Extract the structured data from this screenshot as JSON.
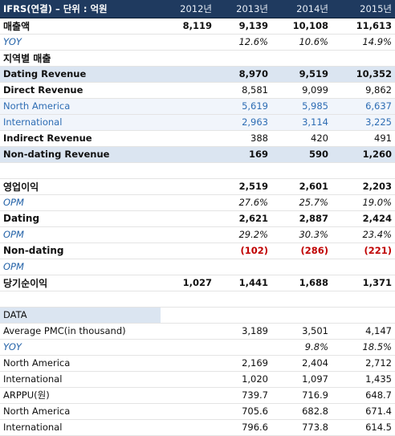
{
  "header": {
    "title": "IFRS(연결) – 단위 : 억원",
    "years": [
      "2012년",
      "2013년",
      "2014년",
      "2015년"
    ]
  },
  "rows": [
    {
      "label": "매출액",
      "values": [
        "8,119",
        "9,139",
        "10,108",
        "11,613"
      ],
      "style": "bold top"
    },
    {
      "label": "YOY",
      "values": [
        null,
        "12.6%",
        "10.6%",
        "14.9%"
      ],
      "style": "yoy line"
    },
    {
      "label": "지역별 매출",
      "values": [
        null,
        null,
        null,
        null
      ],
      "style": "bold"
    },
    {
      "label": "Dating Revenue",
      "values": [
        null,
        "8,970",
        "9,519",
        "10,352"
      ],
      "style": "band"
    },
    {
      "label": "Direct Revenue",
      "values": [
        null,
        "8,581",
        "9,099",
        "9,862"
      ],
      "style": "sub"
    },
    {
      "label": "North America",
      "values": [
        null,
        "5,619",
        "5,985",
        "6,637"
      ],
      "style": "region"
    },
    {
      "label": "International",
      "values": [
        null,
        "2,963",
        "3,114",
        "3,225"
      ],
      "style": "region"
    },
    {
      "label": "Indirect Revenue",
      "values": [
        null,
        "388",
        "420",
        "491"
      ],
      "style": "sub"
    },
    {
      "label": "Non-dating Revenue",
      "values": [
        null,
        "169",
        "590",
        "1,260"
      ],
      "style": "band line"
    },
    {
      "label": null,
      "values": [
        null,
        null,
        null,
        null
      ],
      "style": "gap"
    },
    {
      "label": "영업이익",
      "values": [
        null,
        "2,519",
        "2,601",
        "2,203"
      ],
      "style": "bold top"
    },
    {
      "label": "OPM",
      "values": [
        null,
        "27.6%",
        "25.7%",
        "19.0%"
      ],
      "style": "yoy"
    },
    {
      "label": "Dating",
      "values": [
        null,
        "2,621",
        "2,887",
        "2,424"
      ],
      "style": "bold"
    },
    {
      "label": "OPM",
      "values": [
        null,
        "29.2%",
        "30.3%",
        "23.4%"
      ],
      "style": "yoy"
    },
    {
      "label": "Non-dating",
      "values": [
        null,
        "(102)",
        "(286)",
        "(221)"
      ],
      "style": "bold neg"
    },
    {
      "label": "OPM",
      "values": [
        null,
        null,
        null,
        null
      ],
      "style": "yoy line"
    },
    {
      "label": "당기순이익",
      "values": [
        "1,027",
        "1,441",
        "1,688",
        "1,371"
      ],
      "style": "bold line"
    },
    {
      "label": null,
      "values": [
        null,
        null,
        null,
        null
      ],
      "style": "gap"
    },
    {
      "label": "DATA",
      "values": [
        null,
        null,
        null,
        null
      ],
      "style": "data"
    },
    {
      "label": "Average PMC(in thousand)",
      "values": [
        null,
        "3,189",
        "3,501",
        "4,147"
      ],
      "style": "plain"
    },
    {
      "label": "YOY",
      "values": [
        null,
        null,
        "9.8%",
        "18.5%"
      ],
      "style": "yoy line"
    },
    {
      "label": "North America",
      "values": [
        null,
        "2,169",
        "2,404",
        "2,712"
      ],
      "style": "dsub"
    },
    {
      "label": "International",
      "values": [
        null,
        "1,020",
        "1,097",
        "1,435"
      ],
      "style": "dsub line"
    },
    {
      "label": "ARPPU(원)",
      "values": [
        null,
        "739.7",
        "716.9",
        "648.7"
      ],
      "style": "plain line"
    },
    {
      "label": "North America",
      "values": [
        null,
        "705.6",
        "682.8",
        "671.4"
      ],
      "style": "dsub"
    },
    {
      "label": "International",
      "values": [
        null,
        "796.6",
        "773.8",
        "614.5"
      ],
      "style": "dsub"
    }
  ]
}
